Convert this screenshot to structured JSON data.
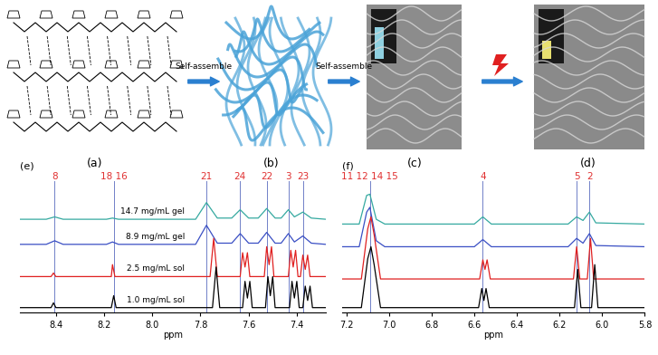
{
  "diagram": {
    "panels": [
      {
        "label": "(a)"
      },
      {
        "label": "(b)"
      },
      {
        "label": "(c)"
      },
      {
        "label": "(d)"
      }
    ],
    "arrows": [
      "Self-assemble",
      "Self-assemble"
    ]
  },
  "chart_data": [
    {
      "type": "line",
      "title": "(e)",
      "xlabel": "ppm",
      "xlim": [
        8.55,
        7.28
      ],
      "xticks": [
        8.4,
        8.2,
        8.0,
        7.8,
        7.6,
        7.4
      ],
      "ylim": [
        0,
        110
      ],
      "tick_labels": "x",
      "peak_labels": [
        {
          "x": 8.405,
          "label": "8"
        },
        {
          "x": 8.16,
          "label": "18 16"
        },
        {
          "x": 7.775,
          "label": "21"
        },
        {
          "x": 7.635,
          "label": "24"
        },
        {
          "x": 7.525,
          "label": "22"
        },
        {
          "x": 7.435,
          "label": "3"
        },
        {
          "x": 7.375,
          "label": "23"
        }
      ],
      "series": [
        {
          "name": "14.7 mg/mL gel",
          "color": "#35a9a0",
          "x": [
            8.55,
            8.44,
            8.405,
            8.37,
            8.19,
            8.165,
            8.14,
            7.82,
            7.775,
            7.73,
            7.67,
            7.635,
            7.6,
            7.56,
            7.525,
            7.49,
            7.465,
            7.435,
            7.41,
            7.375,
            7.34,
            7.28
          ],
          "values": [
            78,
            78,
            80,
            78,
            78,
            79,
            78,
            78,
            92,
            79,
            79,
            86,
            79,
            79,
            87,
            79,
            79,
            86,
            80,
            84,
            79,
            78
          ]
        },
        {
          "name": "8.9 mg/mL gel",
          "color": "#3a4fc4",
          "x": [
            8.55,
            8.44,
            8.405,
            8.37,
            8.19,
            8.165,
            8.14,
            7.82,
            7.775,
            7.73,
            7.67,
            7.635,
            7.6,
            7.56,
            7.525,
            7.49,
            7.465,
            7.435,
            7.41,
            7.375,
            7.34,
            7.28
          ],
          "values": [
            57,
            57,
            60,
            57,
            57,
            59,
            57,
            57,
            73,
            58,
            58,
            66,
            58,
            58,
            67,
            58,
            58,
            66,
            59,
            64,
            58,
            57
          ]
        },
        {
          "name": "2.5 mg/mL sol",
          "color": "#e02020",
          "x": [
            8.55,
            8.42,
            8.41,
            8.4,
            8.17,
            8.165,
            8.155,
            7.76,
            7.745,
            7.73,
            7.635,
            7.625,
            7.615,
            7.605,
            7.595,
            7.535,
            7.525,
            7.515,
            7.505,
            7.495,
            7.435,
            7.425,
            7.415,
            7.405,
            7.395,
            7.385,
            7.375,
            7.365,
            7.355,
            7.345,
            7.28
          ],
          "values": [
            30,
            30,
            33,
            30,
            30,
            40,
            30,
            30,
            62,
            30,
            30,
            50,
            38,
            50,
            30,
            30,
            55,
            40,
            55,
            30,
            30,
            52,
            38,
            52,
            30,
            30,
            48,
            36,
            48,
            30,
            30
          ]
        },
        {
          "name": "1.0 mg/mL sol",
          "color": "#000000",
          "x": [
            8.55,
            8.42,
            8.41,
            8.4,
            8.17,
            8.16,
            8.15,
            7.75,
            7.735,
            7.72,
            7.625,
            7.615,
            7.605,
            7.595,
            7.585,
            7.53,
            7.52,
            7.51,
            7.5,
            7.49,
            7.43,
            7.42,
            7.41,
            7.4,
            7.39,
            7.375,
            7.365,
            7.355,
            7.345,
            7.335,
            7.28
          ],
          "values": [
            4,
            4,
            8,
            4,
            4,
            14,
            4,
            4,
            38,
            4,
            4,
            26,
            12,
            26,
            4,
            4,
            30,
            14,
            30,
            4,
            4,
            26,
            12,
            26,
            4,
            4,
            22,
            10,
            22,
            4,
            4
          ]
        }
      ]
    },
    {
      "type": "line",
      "title": "(f)",
      "xlabel": "ppm",
      "xlim": [
        7.22,
        5.8
      ],
      "xticks": [
        7.2,
        7.0,
        6.8,
        6.6,
        6.4,
        6.2,
        6.0,
        5.8
      ],
      "ylim": [
        0,
        110
      ],
      "tick_labels": "x",
      "peak_labels": [
        {
          "x": 7.09,
          "label": "11 12 14 15"
        },
        {
          "x": 6.56,
          "label": "4"
        },
        {
          "x": 6.12,
          "label": "5"
        },
        {
          "x": 6.06,
          "label": "2"
        }
      ],
      "series": [
        {
          "color": "#35a9a0",
          "x": [
            7.22,
            7.14,
            7.105,
            7.09,
            7.06,
            7.02,
            6.6,
            6.56,
            6.52,
            6.16,
            6.12,
            6.09,
            6.06,
            6.03,
            5.8
          ],
          "values": [
            74,
            74,
            98,
            99,
            78,
            74,
            74,
            80,
            74,
            74,
            80,
            77,
            84,
            75,
            74
          ]
        },
        {
          "color": "#3a4fc4",
          "x": [
            7.22,
            7.14,
            7.105,
            7.09,
            7.06,
            7.02,
            6.6,
            6.56,
            6.52,
            6.16,
            6.12,
            6.09,
            6.06,
            6.03,
            5.8
          ],
          "values": [
            55,
            55,
            84,
            88,
            60,
            55,
            55,
            61,
            55,
            55,
            62,
            58,
            66,
            56,
            55
          ]
        },
        {
          "color": "#e02020",
          "x": [
            7.22,
            7.13,
            7.1,
            7.085,
            7.07,
            7.04,
            6.575,
            6.56,
            6.55,
            6.54,
            6.525,
            6.135,
            6.12,
            6.105,
            6.07,
            6.055,
            6.04,
            5.8
          ],
          "values": [
            28,
            28,
            70,
            80,
            65,
            28,
            28,
            44,
            36,
            44,
            28,
            28,
            55,
            28,
            28,
            62,
            28,
            28
          ]
        },
        {
          "color": "#000000",
          "x": [
            7.22,
            7.13,
            7.1,
            7.085,
            7.07,
            7.04,
            6.58,
            6.565,
            6.555,
            6.545,
            6.53,
            6.13,
            6.115,
            6.1,
            6.05,
            6.035,
            6.02,
            5.8
          ],
          "values": [
            4,
            4,
            45,
            55,
            40,
            4,
            4,
            20,
            10,
            20,
            4,
            4,
            36,
            4,
            4,
            40,
            4,
            4
          ]
        }
      ]
    }
  ]
}
